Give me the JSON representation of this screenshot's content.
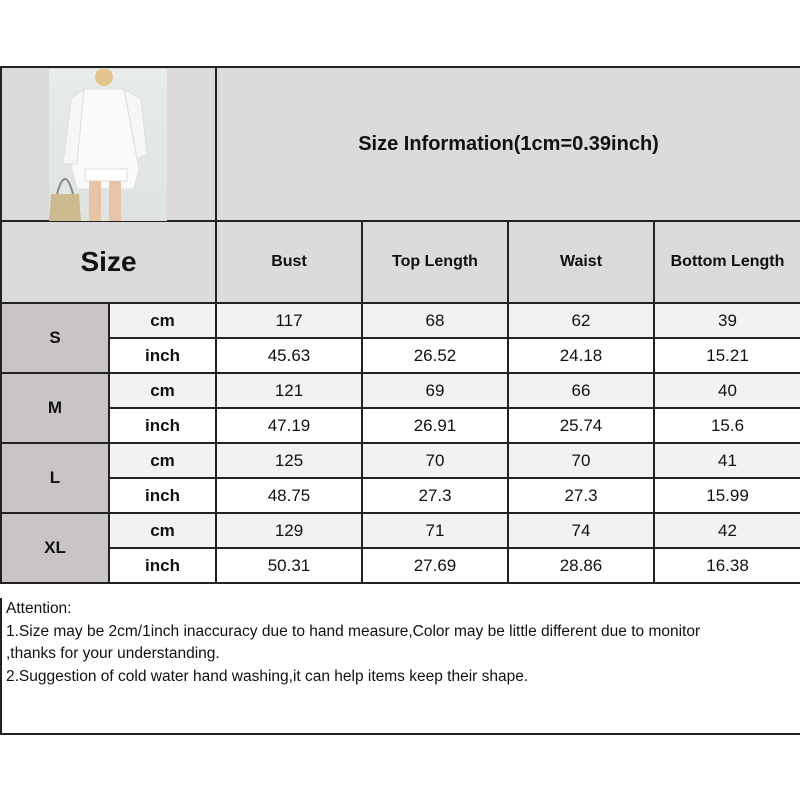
{
  "header": {
    "title": "Size Information(1cm=0.39inch)",
    "size_label": "Size",
    "columns": [
      "Bust",
      "Top Length",
      "Waist",
      "Bottom Length"
    ]
  },
  "rows": [
    {
      "size": "S",
      "cm": {
        "unit": "cm",
        "values": [
          "117",
          "68",
          "62",
          "39"
        ]
      },
      "inch": {
        "unit": "inch",
        "values": [
          "45.63",
          "26.52",
          "24.18",
          "15.21"
        ]
      }
    },
    {
      "size": "M",
      "cm": {
        "unit": "cm",
        "values": [
          "121",
          "69",
          "66",
          "40"
        ]
      },
      "inch": {
        "unit": "inch",
        "values": [
          "47.19",
          "26.91",
          "25.74",
          "15.6"
        ]
      }
    },
    {
      "size": "L",
      "cm": {
        "unit": "cm",
        "values": [
          "125",
          "70",
          "70",
          "41"
        ]
      },
      "inch": {
        "unit": "inch",
        "values": [
          "48.75",
          "27.3",
          "27.3",
          "15.99"
        ]
      }
    },
    {
      "size": "XL",
      "cm": {
        "unit": "cm",
        "values": [
          "129",
          "71",
          "74",
          "42"
        ]
      },
      "inch": {
        "unit": "inch",
        "values": [
          "50.31",
          "27.69",
          "28.86",
          "16.38"
        ]
      }
    }
  ],
  "attention": {
    "title": "Attention:",
    "lines": [
      "1.Size may be 2cm/1inch inaccuracy due to hand measure,Color may be little different due to monitor",
      ",thanks for your understanding.",
      "2.Suggestion of cold water hand washing,it can help items keep their shape."
    ]
  }
}
